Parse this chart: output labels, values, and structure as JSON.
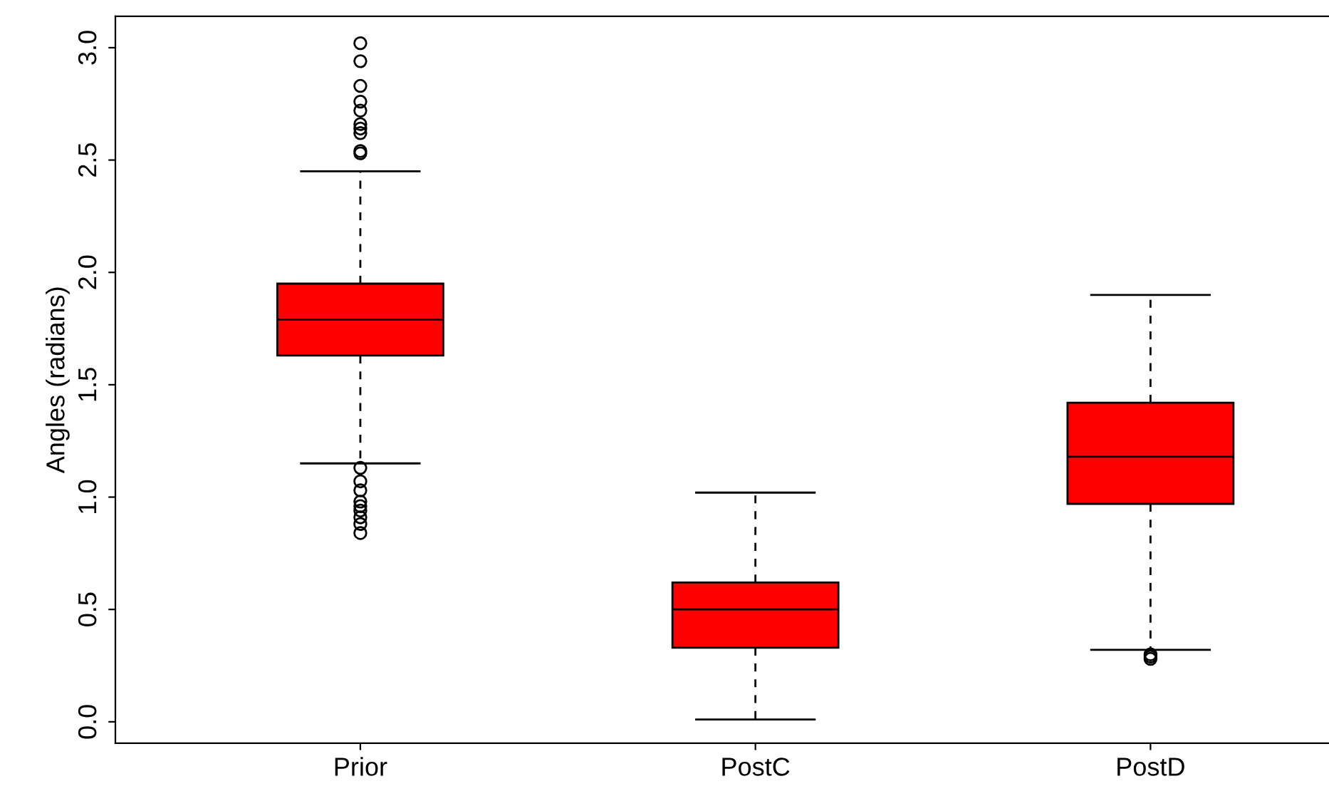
{
  "chart_data": {
    "type": "box",
    "ylabel": "Angles (radians)",
    "categories": [
      "Prior",
      "PostC",
      "PostD"
    ],
    "color": "#ff0000",
    "boxes": [
      {
        "low": 1.15,
        "q1": 1.63,
        "median": 1.79,
        "q3": 1.95,
        "high": 2.45,
        "outliers": [
          3.02,
          2.94,
          2.83,
          2.76,
          2.72,
          2.66,
          2.64,
          2.62,
          2.54,
          2.53,
          1.13,
          1.07,
          1.03,
          0.98,
          0.96,
          0.94,
          0.91,
          0.88,
          0.84
        ]
      },
      {
        "low": 0.01,
        "q1": 0.33,
        "median": 0.5,
        "q3": 0.62,
        "high": 1.02
      },
      {
        "low": 0.32,
        "q1": 0.97,
        "median": 1.18,
        "q3": 1.42,
        "high": 1.9,
        "outliers": [
          0.3,
          0.29,
          0.28
        ]
      }
    ],
    "ylim": [
      -0.095,
      3.14
    ],
    "yticks": [
      {
        "value": 0,
        "label": "0.0"
      },
      0.5,
      {
        "value": 1,
        "label": "1.0"
      },
      1.5,
      {
        "value": 2,
        "label": "2.0"
      },
      2.5,
      {
        "value": 3,
        "label": "3.0"
      }
    ],
    "grid": false
  }
}
